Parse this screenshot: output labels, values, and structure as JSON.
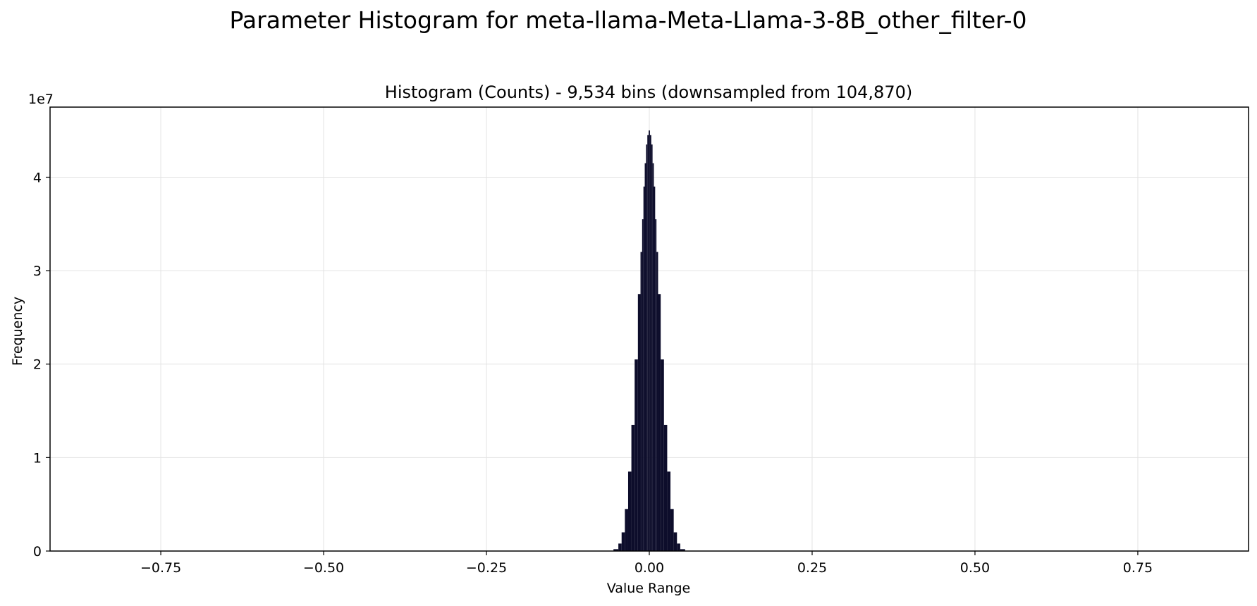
{
  "figure": {
    "suptitle": "Parameter Histogram for meta-llama-Meta-Llama-3-8B_other_filter-0"
  },
  "chart_data": {
    "type": "bar",
    "title": "Histogram (Counts) - 9,534 bins (downsampled from 104,870)",
    "xlabel": "Value Range",
    "ylabel": "Frequency",
    "y_offset_label": "1e7",
    "xlim": [
      -0.92,
      0.92
    ],
    "ylim": [
      0,
      4.75
    ],
    "y_scale_note": "y values in units of 1e7",
    "grid": true,
    "legend": "none",
    "bar_color": "#0d0d2b",
    "x_ticks": [
      -0.75,
      -0.5,
      -0.25,
      0.0,
      0.25,
      0.5,
      0.75
    ],
    "x_tick_labels": [
      "−0.75",
      "−0.50",
      "−0.25",
      "0.00",
      "0.25",
      "0.50",
      "0.75"
    ],
    "y_ticks": [
      0,
      1,
      2,
      3,
      4
    ],
    "y_tick_labels": [
      "0",
      "1",
      "2",
      "3",
      "4"
    ],
    "x": [
      -0.06,
      -0.05,
      -0.045,
      -0.04,
      -0.035,
      -0.03,
      -0.025,
      -0.02,
      -0.015,
      -0.012,
      -0.01,
      -0.008,
      -0.006,
      -0.004,
      -0.002,
      0.0,
      0.002,
      0.004,
      0.006,
      0.008,
      0.01,
      0.012,
      0.015,
      0.02,
      0.025,
      0.03,
      0.035,
      0.04,
      0.045,
      0.05,
      0.06
    ],
    "values": [
      0.0,
      0.02,
      0.08,
      0.2,
      0.45,
      0.85,
      1.35,
      2.05,
      2.75,
      3.2,
      3.55,
      3.9,
      4.15,
      4.35,
      4.45,
      4.5,
      4.45,
      4.35,
      4.15,
      3.9,
      3.55,
      3.2,
      2.75,
      2.05,
      1.35,
      0.85,
      0.45,
      0.2,
      0.08,
      0.02,
      0.0
    ]
  }
}
